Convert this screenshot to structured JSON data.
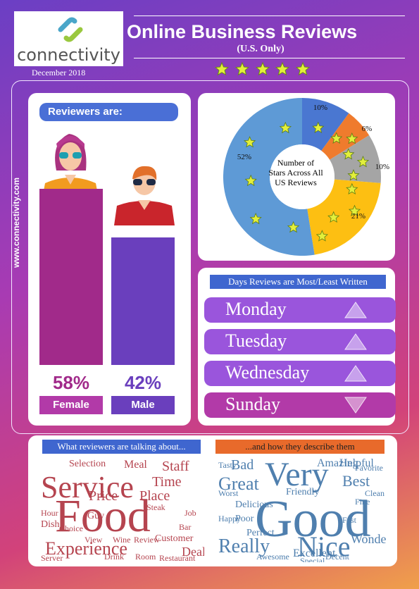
{
  "brand": {
    "logo_text": "connectivity",
    "date": "December 2018",
    "website": "www.connectivity.com"
  },
  "header": {
    "title": "Online Business Reviews",
    "subtitle": "(U.S. Only)",
    "star_count": 5
  },
  "reviewers": {
    "heading": "Reviewers are:",
    "female": {
      "pct": "58%",
      "label": "Female",
      "value": 58
    },
    "male": {
      "pct": "42%",
      "label": "Male",
      "value": 42
    }
  },
  "chart_data": {
    "type": "pie",
    "center_label": "Number of Stars Across All US Reviews",
    "slices": [
      {
        "label": "10%",
        "value": 10,
        "stars": 1,
        "color": "#4a77d1"
      },
      {
        "label": "6%",
        "value": 6,
        "stars": 2,
        "color": "#ef7b2d"
      },
      {
        "label": "10%",
        "value": 10,
        "stars": 3,
        "color": "#a5a5a5"
      },
      {
        "label": "21%",
        "value": 21,
        "stars": 4,
        "color": "#fdbf12"
      },
      {
        "label": "52%",
        "value": 52,
        "stars": 5,
        "color": "#5e9ad6"
      }
    ]
  },
  "days": {
    "heading": "Days Reviews are Most/Least Written",
    "items": [
      {
        "label": "Monday",
        "trend": "up"
      },
      {
        "label": "Tuesday",
        "trend": "up"
      },
      {
        "label": "Wednesday",
        "trend": "up"
      },
      {
        "label": "Sunday",
        "trend": "down"
      }
    ]
  },
  "clouds": {
    "topics_heading": "What reviewers are talking about...",
    "describe_heading": "...and how they describe them",
    "topics_words": [
      "Service",
      "Food",
      "Experience",
      "Selection",
      "Meal",
      "Staff",
      "Time",
      "Price",
      "Place",
      "Steak",
      "Guy",
      "View",
      "Wine",
      "Review",
      "Customer",
      "Deal",
      "Drink",
      "Room",
      "Restaurant",
      "Server",
      "Dish",
      "Choice",
      "Hour",
      "Job",
      "Bar"
    ],
    "describe_words": [
      "Very",
      "Good",
      "Really",
      "Nice",
      "Great",
      "Bad",
      "Best",
      "Amazing",
      "Helpful",
      "Friendly",
      "Delicious",
      "Poor",
      "Excellent",
      "Wonderful",
      "Perfect",
      "Happy",
      "Fast",
      "Clean",
      "Worst",
      "Special",
      "Awesome",
      "Fine",
      "Favorite",
      "Tasty",
      "Decent"
    ]
  },
  "colors": {
    "accent_blue": "#4a6fd6",
    "bar_female": "#a12a8a",
    "bar_male": "#6a3fbd",
    "day_pill": "#9a55dc",
    "sunday_pill": "#b23aa8",
    "star": "#e3ef3b"
  }
}
